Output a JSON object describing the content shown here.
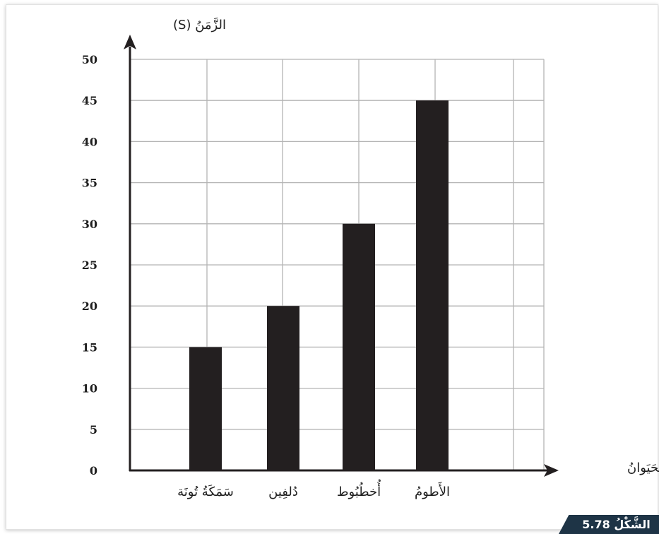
{
  "figure": {
    "label": "الشَّكْلُ 5.78",
    "badge_color": "#1e3446"
  },
  "chart_data": {
    "type": "bar",
    "title": "",
    "xlabel": "الحَيَوانُ",
    "ylabel": "الزَّمَنُ (S)",
    "categories": [
      "سَمَكَةُ تُونَة",
      "دُلفِين",
      "أُخطُبُوط",
      "الأَطومُ"
    ],
    "values": [
      15,
      20,
      30,
      45
    ],
    "ylim": [
      0,
      50
    ],
    "yticks": [
      0,
      5,
      10,
      15,
      20,
      25,
      30,
      35,
      40,
      45,
      50
    ],
    "grid": true,
    "bar_color": "#231f20",
    "grid_color": "#b4b4b4"
  }
}
